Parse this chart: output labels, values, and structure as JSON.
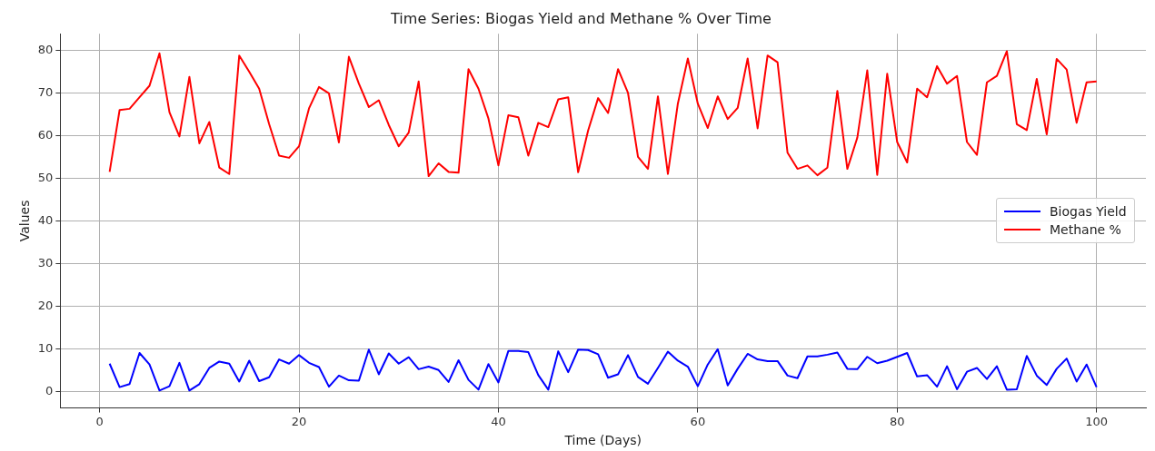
{
  "chart_data": {
    "type": "line",
    "title": "Time Series: Biogas Yield and Methane % Over Time",
    "xlabel": "Time (Days)",
    "ylabel": "Values",
    "x": [
      1,
      2,
      3,
      4,
      5,
      6,
      7,
      8,
      9,
      10,
      11,
      12,
      13,
      14,
      15,
      16,
      17,
      18,
      19,
      20,
      21,
      22,
      23,
      24,
      25,
      26,
      27,
      28,
      29,
      30,
      31,
      32,
      33,
      34,
      35,
      36,
      37,
      38,
      39,
      40,
      41,
      42,
      43,
      44,
      45,
      46,
      47,
      48,
      49,
      50,
      51,
      52,
      53,
      54,
      55,
      56,
      57,
      58,
      59,
      60,
      61,
      62,
      63,
      64,
      65,
      66,
      67,
      68,
      69,
      70,
      71,
      72,
      73,
      74,
      75,
      76,
      77,
      78,
      79,
      80,
      81,
      82,
      83,
      84,
      85,
      86,
      87,
      88,
      89,
      90,
      91,
      92,
      93,
      94,
      95,
      96,
      97,
      98,
      99,
      100
    ],
    "series": [
      {
        "name": "Biogas Yield",
        "color": "#0000ff",
        "values": [
          6.5,
          1,
          1.7,
          9,
          6.3,
          0.2,
          1.2,
          6.7,
          0.2,
          1.7,
          5.5,
          7,
          6.5,
          2.3,
          7.2,
          2.4,
          3.3,
          7.5,
          6.5,
          8.5,
          6.7,
          5.7,
          1.1,
          3.7,
          2.6,
          2.5,
          9.8,
          4,
          8.9,
          6.5,
          8,
          5.2,
          5.8,
          5,
          2.2,
          7.3,
          2.7,
          0.4,
          6.4,
          2.1,
          9.5,
          9.5,
          9.2,
          3.8,
          0.4,
          9.4,
          4.5,
          9.8,
          9.7,
          8.7,
          3.2,
          4,
          8.5,
          3.4,
          1.8,
          5.5,
          9.3,
          7.2,
          5.8,
          1.2,
          6.3,
          9.9,
          1.4,
          5.3,
          8.8,
          7.5,
          7.1,
          7.1,
          3.7,
          3.1,
          8.2,
          8.2,
          8.6,
          9.1,
          5.3,
          5.2,
          8.1,
          6.6,
          7.2,
          8.1,
          9,
          3.5,
          3.8,
          1.1,
          5.9,
          0.5,
          4.6,
          5.5,
          2.9,
          5.9,
          0.4,
          0.5,
          8.3,
          3.7,
          1.5,
          5.3,
          7.7,
          2.3,
          6.3,
          1
        ]
      },
      {
        "name": "Methane %",
        "color": "#ff0000",
        "values": [
          51.5,
          66,
          66.3,
          69,
          71.7,
          79.3,
          65.5,
          59.8,
          73.8,
          58.2,
          63.2,
          52.5,
          51,
          78.8,
          75,
          71,
          62.7,
          55.3,
          54.8,
          57.5,
          66.4,
          71.4,
          69.9,
          58.4,
          78.5,
          72.2,
          66.7,
          68.3,
          62.5,
          57.5,
          60.7,
          72.7,
          50.5,
          53.5,
          51.5,
          51.3,
          75.6,
          71,
          64,
          53,
          64.8,
          64.3,
          55.3,
          63,
          62,
          68.5,
          69,
          51.4,
          61.2,
          68.8,
          65.3,
          75.6,
          70,
          55,
          52.2,
          69.2,
          51,
          67.5,
          78.1,
          67.5,
          61.8,
          69.2,
          63.9,
          66.5,
          78.1,
          61.7,
          78.8,
          77.2,
          56,
          52.2,
          53,
          50.7,
          52.5,
          70.5,
          52.2,
          59.5,
          75.3,
          50.8,
          74.5,
          58.5,
          53.7,
          71,
          69,
          76.3,
          72.2,
          74,
          58.5,
          55.5,
          72.5,
          74,
          79.8,
          62.7,
          61.3,
          73.3,
          60.3,
          78,
          75.5,
          63,
          72.5,
          72.7
        ]
      }
    ],
    "xlim": [
      -3.95,
      104.95
    ],
    "xticks": [
      0,
      20,
      40,
      60,
      80,
      100
    ],
    "ylim": [
      -3.9,
      83.9
    ],
    "yticks": [
      0,
      10,
      20,
      30,
      40,
      50,
      60,
      70,
      80
    ],
    "grid": true,
    "legend": "right",
    "marker": "none",
    "line_style": "solid"
  }
}
